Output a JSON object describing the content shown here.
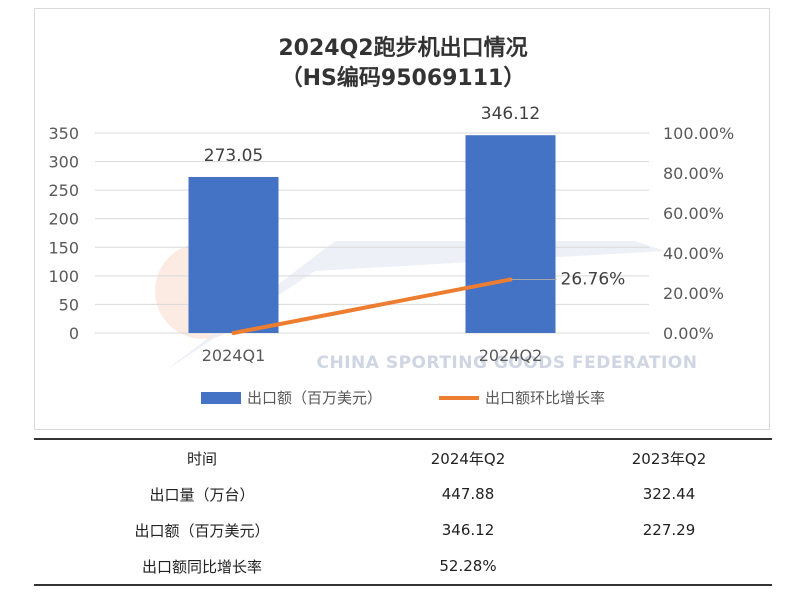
{
  "chart_data": {
    "type": "bar+line",
    "title": [
      "2024Q2跑步机出口情况",
      "（HS编码95069111）"
    ],
    "categories": [
      "2024Q1",
      "2024Q2"
    ],
    "series": [
      {
        "name": "出口额（百万美元）",
        "type": "bar",
        "axis": "left",
        "values": [
          273.05,
          346.12
        ],
        "color": "#4472C4"
      },
      {
        "name": "出口额环比增长率",
        "type": "line",
        "axis": "right",
        "values": [
          0,
          26.76
        ],
        "labels": [
          "",
          "26.76%"
        ],
        "color": "#ED7D31"
      }
    ],
    "y_left": {
      "min": 0,
      "max": 350,
      "step": 50,
      "ticks": [
        "0",
        "50",
        "100",
        "150",
        "200",
        "250",
        "300",
        "350"
      ]
    },
    "y_right": {
      "min": 0,
      "max": 100,
      "step": 20,
      "ticks": [
        "0.00%",
        "20.00%",
        "40.00%",
        "60.00%",
        "80.00%",
        "100.00%"
      ]
    },
    "bar_labels": [
      "273.05",
      "346.12"
    ],
    "grid": true,
    "legend_position": "bottom",
    "watermark": {
      "logo": "CSGF",
      "text": "CHINA SPORTING GOODS FEDERATION"
    }
  },
  "table": {
    "header": [
      "时间",
      "2024年Q2",
      "2023年Q2"
    ],
    "rows": [
      [
        "出口量（万台）",
        "447.88",
        "322.44"
      ],
      [
        "出口额（百万美元）",
        "346.12",
        "227.29"
      ],
      [
        "出口额同比增长率",
        "52.28%",
        ""
      ]
    ]
  }
}
